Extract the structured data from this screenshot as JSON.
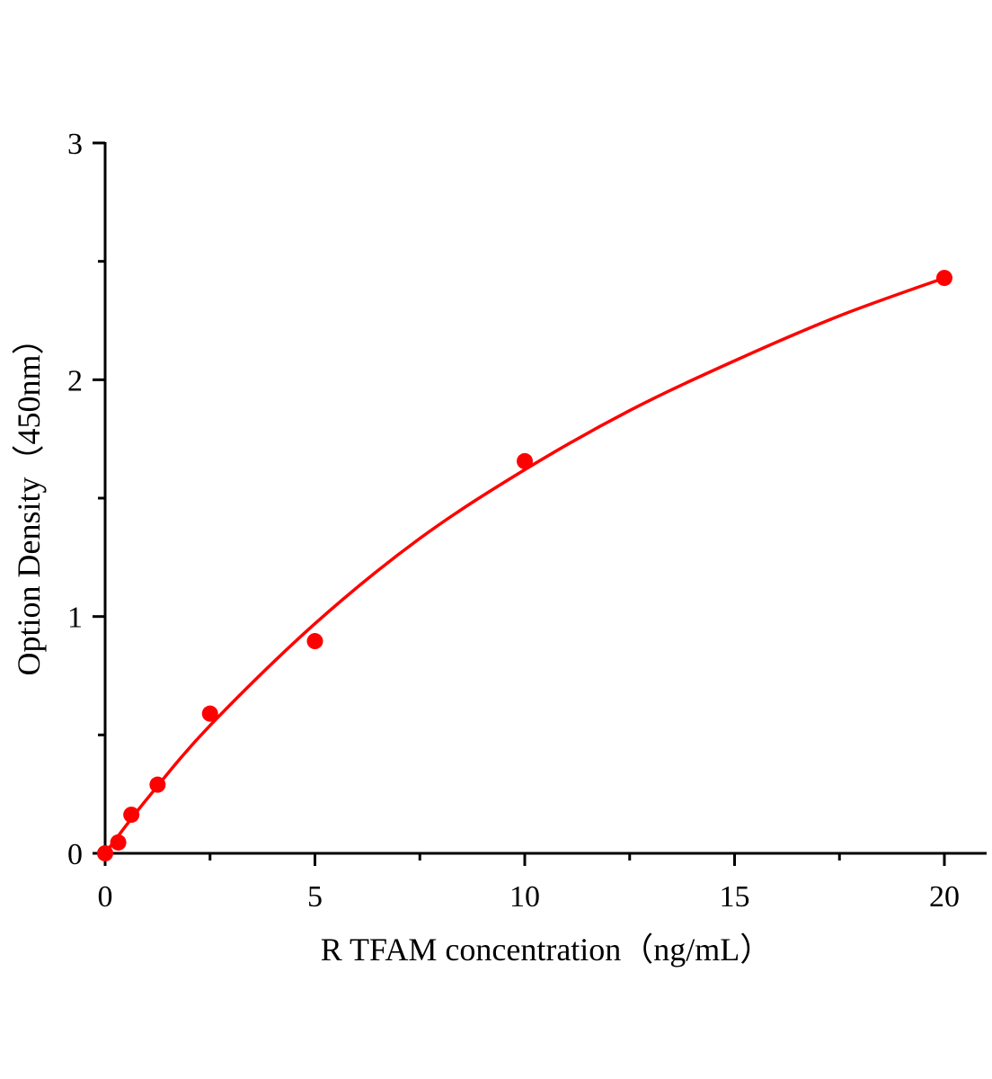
{
  "chart_data": {
    "type": "scatter",
    "xlabel": "R TFAM concentration（ng/mL）",
    "ylabel": "Option Density（450nm）",
    "xlim": [
      0,
      21
    ],
    "ylim": [
      0,
      3
    ],
    "x_ticks": [
      "0",
      "5",
      "10",
      "15",
      "20"
    ],
    "y_ticks": [
      "0",
      "1",
      "2",
      "3"
    ],
    "grid": false,
    "legend": "none",
    "color": "#ff0000",
    "series": [
      {
        "points": [
          {
            "x": 0,
            "y": 0
          },
          {
            "x": 0.3125,
            "y": 0.046
          },
          {
            "x": 0.625,
            "y": 0.163
          },
          {
            "x": 1.25,
            "y": 0.29
          },
          {
            "x": 2.5,
            "y": 0.59
          },
          {
            "x": 5,
            "y": 0.896
          },
          {
            "x": 10,
            "y": 1.656
          },
          {
            "x": 20,
            "y": 2.43
          }
        ],
        "fit_curve": [
          {
            "x": 0,
            "y": 0
          },
          {
            "x": 1,
            "y": 0.23
          },
          {
            "x": 2.5,
            "y": 0.54
          },
          {
            "x": 5,
            "y": 0.97
          },
          {
            "x": 7.5,
            "y": 1.33
          },
          {
            "x": 10,
            "y": 1.62
          },
          {
            "x": 12.5,
            "y": 1.87
          },
          {
            "x": 15,
            "y": 2.08
          },
          {
            "x": 17.5,
            "y": 2.27
          },
          {
            "x": 20,
            "y": 2.43
          }
        ]
      }
    ]
  }
}
